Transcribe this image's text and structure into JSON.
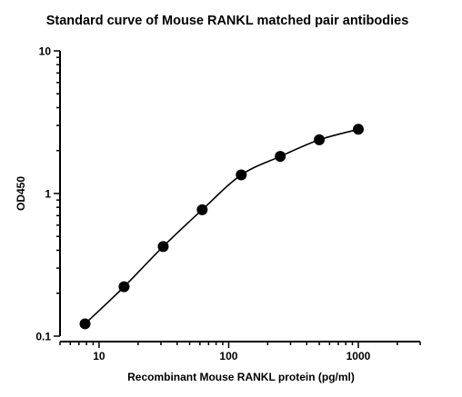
{
  "chart_data": {
    "type": "scatter",
    "title": "Standard curve of Mouse RANKL matched pair antibodies",
    "xlabel": "Recombinant Mouse RANKL protein (pg/ml)",
    "ylabel": "OD450",
    "x_scale": "log",
    "y_scale": "log",
    "xlim": [
      5,
      3000
    ],
    "ylim": [
      0.1,
      10
    ],
    "x_ticks": [
      10,
      100,
      1000
    ],
    "x_tick_labels": [
      "10",
      "100",
      "1000"
    ],
    "y_ticks": [
      0.1,
      1,
      10
    ],
    "y_tick_labels": [
      "0.1",
      "1",
      "10"
    ],
    "grid": false,
    "legend": "none",
    "fit_curve": true,
    "series": [
      {
        "x": [
          7.8,
          15.6,
          31.25,
          62.5,
          125,
          250,
          500,
          1000
        ],
        "y": [
          0.122,
          0.222,
          0.425,
          0.77,
          1.35,
          1.82,
          2.38,
          2.82
        ]
      }
    ],
    "colors": {
      "points": "#000000",
      "curve": "#000000",
      "axes": "#000000"
    }
  }
}
